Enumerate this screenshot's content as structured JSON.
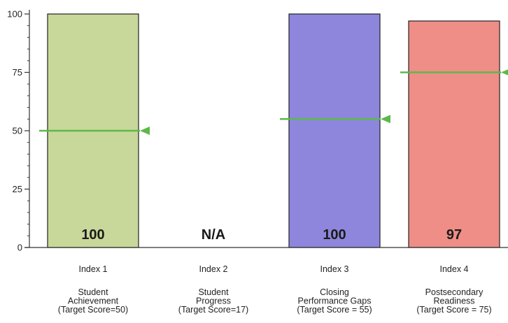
{
  "chart_data": {
    "type": "bar",
    "title": "",
    "xlabel": "",
    "ylabel": "",
    "ylim": [
      0,
      100
    ],
    "yticks": [
      0,
      25,
      50,
      75,
      100
    ],
    "grid": false,
    "legend": "none",
    "categories": [
      {
        "index_label": "Index 1",
        "name_lines": [
          "Student",
          "Achievement",
          "(Target Score=50)"
        ],
        "value": 100,
        "value_label": "100",
        "target": 50,
        "color": "#c8d89a"
      },
      {
        "index_label": "Index 2",
        "name_lines": [
          "Student",
          "Progress",
          "(Target Score=17)"
        ],
        "value": null,
        "value_label": "N/A",
        "target": null,
        "color": null
      },
      {
        "index_label": "Index 3",
        "name_lines": [
          "Closing",
          "Performance Gaps",
          "(Target Score = 55)"
        ],
        "value": 100,
        "value_label": "100",
        "target": 55,
        "color": "#8d86dc"
      },
      {
        "index_label": "Index 4",
        "name_lines": [
          "Postsecondary",
          "Readiness",
          "(Target Score = 75)"
        ],
        "value": 97,
        "value_label": "97",
        "target": 75,
        "color": "#ee8e86"
      }
    ],
    "colors": {
      "target_line": "#5db84a",
      "bar_outline": "#222222",
      "axis": "#333333"
    }
  }
}
